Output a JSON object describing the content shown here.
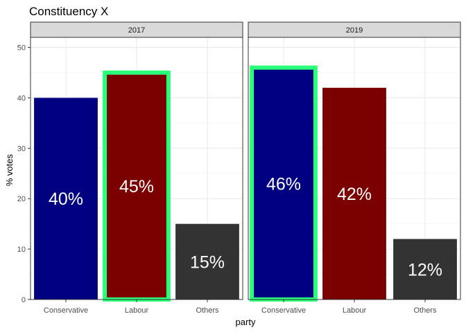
{
  "chart_data": {
    "type": "bar",
    "title": "Constituency X",
    "xlabel": "party",
    "ylabel": "% votes",
    "ylim": [
      0,
      52
    ],
    "yticks": [
      0,
      10,
      20,
      30,
      40,
      50
    ],
    "categories": [
      "Conservative",
      "Labour",
      "Others"
    ],
    "colors": {
      "Conservative": "#000080",
      "Labour": "#7b0000",
      "Others": "#333333",
      "highlight": "#2bff7a"
    },
    "grid": true,
    "legend": "none",
    "facets": [
      {
        "label": "2017",
        "values": [
          40,
          45,
          15
        ],
        "labels": [
          "40%",
          "45%",
          "15%"
        ],
        "highlighted": "Labour"
      },
      {
        "label": "2019",
        "values": [
          46,
          42,
          12
        ],
        "labels": [
          "46%",
          "42%",
          "12%"
        ],
        "highlighted": "Conservative"
      }
    ]
  }
}
